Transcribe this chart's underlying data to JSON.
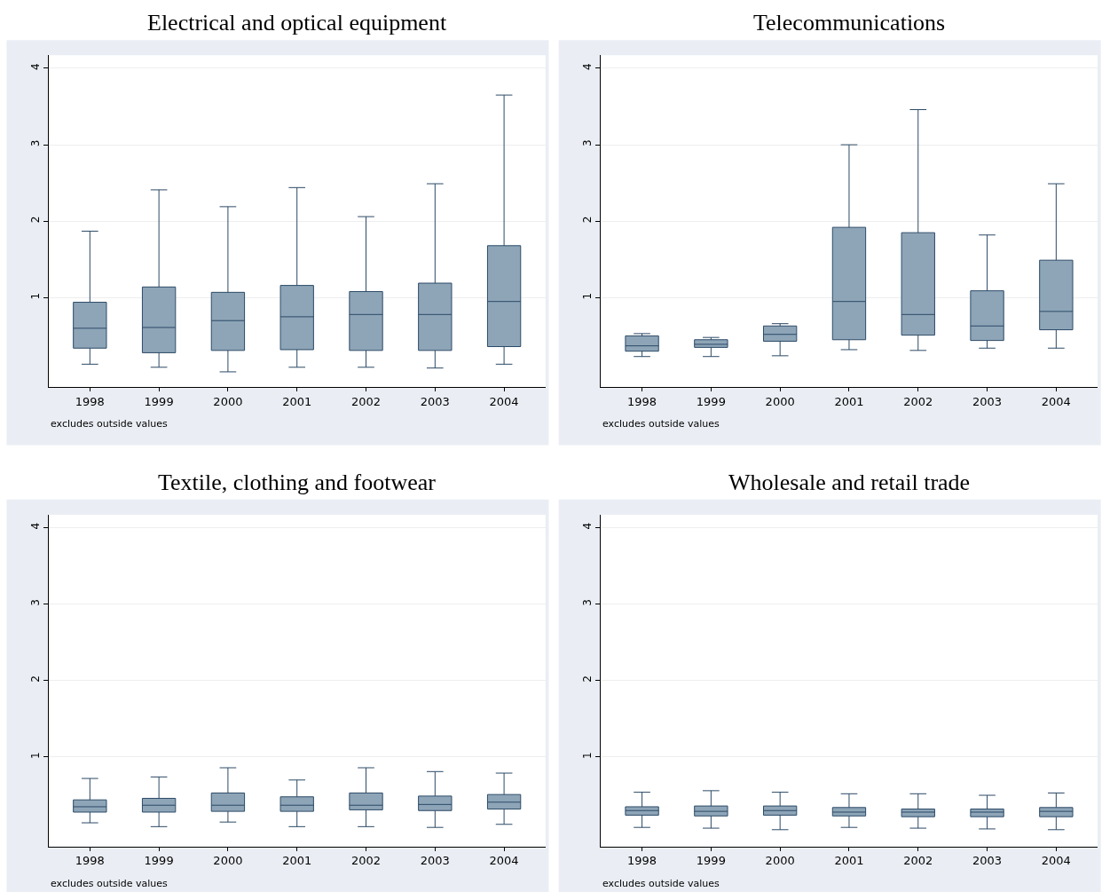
{
  "chart_data": [
    {
      "type": "box",
      "title": "Electrical and optical equipment",
      "categories": [
        "1998",
        "1999",
        "2000",
        "2001",
        "2002",
        "2003",
        "2004"
      ],
      "color": "#8ea5b8",
      "ylim": [
        -0.17,
        4.17
      ],
      "yticks": [
        1,
        2,
        3,
        4
      ],
      "grid": "y",
      "annotations": [
        "excludes outside values"
      ],
      "boxes": [
        {
          "low": 0.13,
          "q1": 0.34,
          "median": 0.6,
          "q3": 0.94,
          "high": 1.87
        },
        {
          "low": 0.09,
          "q1": 0.28,
          "median": 0.61,
          "q3": 1.14,
          "high": 2.41
        },
        {
          "low": 0.03,
          "q1": 0.31,
          "median": 0.7,
          "q3": 1.07,
          "high": 2.19
        },
        {
          "low": 0.09,
          "q1": 0.32,
          "median": 0.75,
          "q3": 1.16,
          "high": 2.44
        },
        {
          "low": 0.09,
          "q1": 0.31,
          "median": 0.78,
          "q3": 1.08,
          "high": 2.06
        },
        {
          "low": 0.08,
          "q1": 0.31,
          "median": 0.78,
          "q3": 1.19,
          "high": 2.49
        },
        {
          "low": 0.13,
          "q1": 0.36,
          "median": 0.95,
          "q3": 1.68,
          "high": 3.65
        }
      ]
    },
    {
      "type": "box",
      "title": "Telecommunications",
      "categories": [
        "1998",
        "1999",
        "2000",
        "2001",
        "2002",
        "2003",
        "2004"
      ],
      "color": "#8ea5b8",
      "ylim": [
        -0.17,
        4.17
      ],
      "yticks": [
        1,
        2,
        3,
        4
      ],
      "grid": "y",
      "annotations": [
        "excludes outside values"
      ],
      "boxes": [
        {
          "low": 0.23,
          "q1": 0.3,
          "median": 0.37,
          "q3": 0.5,
          "high": 0.53
        },
        {
          "low": 0.23,
          "q1": 0.35,
          "median": 0.39,
          "q3": 0.45,
          "high": 0.48
        },
        {
          "low": 0.24,
          "q1": 0.43,
          "median": 0.52,
          "q3": 0.63,
          "high": 0.66
        },
        {
          "low": 0.32,
          "q1": 0.45,
          "median": 0.95,
          "q3": 1.92,
          "high": 3.0
        },
        {
          "low": 0.31,
          "q1": 0.51,
          "median": 0.78,
          "q3": 1.85,
          "high": 3.46
        },
        {
          "low": 0.34,
          "q1": 0.44,
          "median": 0.63,
          "q3": 1.09,
          "high": 1.82
        },
        {
          "low": 0.34,
          "q1": 0.58,
          "median": 0.82,
          "q3": 1.49,
          "high": 2.49
        }
      ]
    },
    {
      "type": "box",
      "title": "Textile, clothing and footwear",
      "categories": [
        "1998",
        "1999",
        "2000",
        "2001",
        "2002",
        "2003",
        "2004"
      ],
      "color": "#8ea5b8",
      "ylim": [
        -0.17,
        4.17
      ],
      "yticks": [
        1,
        2,
        3,
        4
      ],
      "grid": "y",
      "annotations": [
        "excludes outside values"
      ],
      "boxes": [
        {
          "low": 0.14,
          "q1": 0.28,
          "median": 0.35,
          "q3": 0.44,
          "high": 0.72
        },
        {
          "low": 0.09,
          "q1": 0.28,
          "median": 0.37,
          "q3": 0.46,
          "high": 0.74
        },
        {
          "low": 0.15,
          "q1": 0.29,
          "median": 0.37,
          "q3": 0.53,
          "high": 0.86
        },
        {
          "low": 0.09,
          "q1": 0.29,
          "median": 0.37,
          "q3": 0.48,
          "high": 0.7
        },
        {
          "low": 0.09,
          "q1": 0.31,
          "median": 0.37,
          "q3": 0.53,
          "high": 0.86
        },
        {
          "low": 0.08,
          "q1": 0.3,
          "median": 0.38,
          "q3": 0.49,
          "high": 0.81
        },
        {
          "low": 0.12,
          "q1": 0.32,
          "median": 0.41,
          "q3": 0.51,
          "high": 0.79
        }
      ]
    },
    {
      "type": "box",
      "title": "Wholesale and retail trade",
      "categories": [
        "1998",
        "1999",
        "2000",
        "2001",
        "2002",
        "2003",
        "2004"
      ],
      "color": "#8ea5b8",
      "ylim": [
        -0.17,
        4.17
      ],
      "yticks": [
        1,
        2,
        3,
        4
      ],
      "grid": "y",
      "annotations": [
        "excludes outside values"
      ],
      "boxes": [
        {
          "low": 0.08,
          "q1": 0.24,
          "median": 0.3,
          "q3": 0.35,
          "high": 0.54
        },
        {
          "low": 0.07,
          "q1": 0.23,
          "median": 0.29,
          "q3": 0.36,
          "high": 0.56
        },
        {
          "low": 0.05,
          "q1": 0.24,
          "median": 0.3,
          "q3": 0.36,
          "high": 0.54
        },
        {
          "low": 0.08,
          "q1": 0.23,
          "median": 0.28,
          "q3": 0.34,
          "high": 0.52
        },
        {
          "low": 0.07,
          "q1": 0.22,
          "median": 0.28,
          "q3": 0.32,
          "high": 0.52
        },
        {
          "low": 0.06,
          "q1": 0.22,
          "median": 0.28,
          "q3": 0.32,
          "high": 0.5
        },
        {
          "low": 0.05,
          "q1": 0.22,
          "median": 0.29,
          "q3": 0.34,
          "high": 0.53
        }
      ]
    }
  ]
}
